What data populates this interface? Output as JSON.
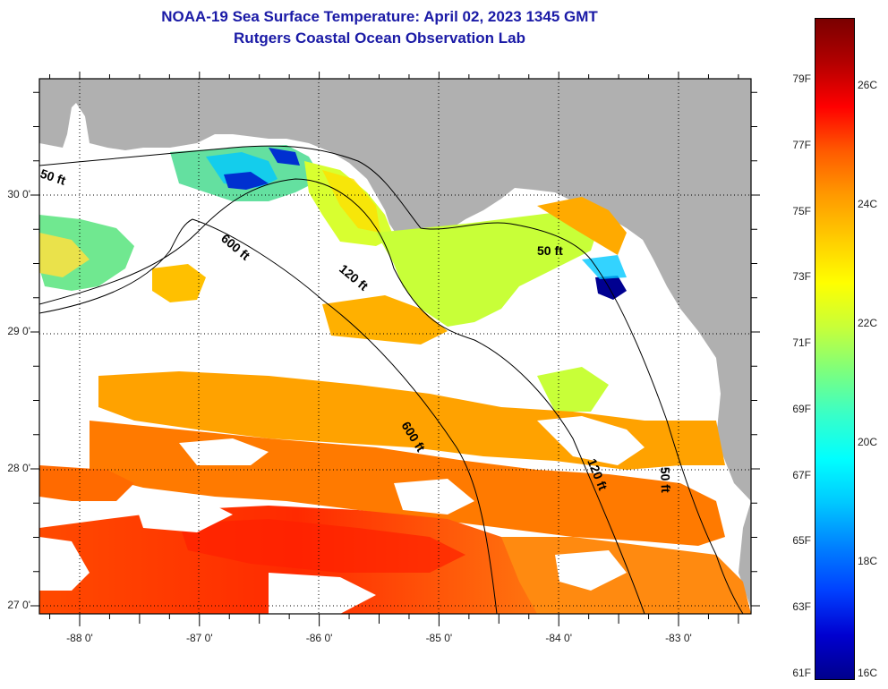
{
  "header": {
    "title": "NOAA-19 Sea Surface Temperature:  April 02, 2023 1345 GMT",
    "subtitle": "Rutgers Coastal Ocean Observation Lab"
  },
  "map": {
    "land_color": "#b0b0b0",
    "nodata_color": "#ffffff",
    "lat_labels": [
      "30 0'",
      "29 0'",
      "28 0'",
      "27 0'"
    ],
    "lon_labels": [
      "-88 0'",
      "-87 0'",
      "-86 0'",
      "-85 0'",
      "-84 0'",
      "-83 0'"
    ],
    "lat_values": [
      30,
      29,
      28,
      27
    ],
    "lon_values": [
      -88,
      -87,
      -86,
      -85,
      -84,
      -83
    ],
    "lon_range": [
      -88.33,
      -82.42
    ],
    "lat_range": [
      26.97,
      30.75
    ],
    "isobaths": [
      {
        "label": "50 ft"
      },
      {
        "label": "120 ft"
      },
      {
        "label": "600 ft"
      },
      {
        "label": "600 ft"
      },
      {
        "label": "120 ft"
      },
      {
        "label": "50 ft"
      },
      {
        "label": "50 ft"
      }
    ]
  },
  "colorbar": {
    "f_labels": [
      "79F",
      "77F",
      "75F",
      "73F",
      "71F",
      "69F",
      "67F",
      "65F",
      "63F",
      "61F"
    ],
    "c_labels": [
      "26C",
      "24C",
      "22C",
      "20C",
      "18C",
      "16C"
    ],
    "colors_top_to_bottom": [
      "#7a0000",
      "#b30000",
      "#ff0000",
      "#ff5a00",
      "#ff9900",
      "#ffcc00",
      "#ffff00",
      "#c8ff38",
      "#7dff7d",
      "#38ffc8",
      "#00ffff",
      "#00c8ff",
      "#0080ff",
      "#0040ff",
      "#0000d0",
      "#00008c"
    ]
  }
}
